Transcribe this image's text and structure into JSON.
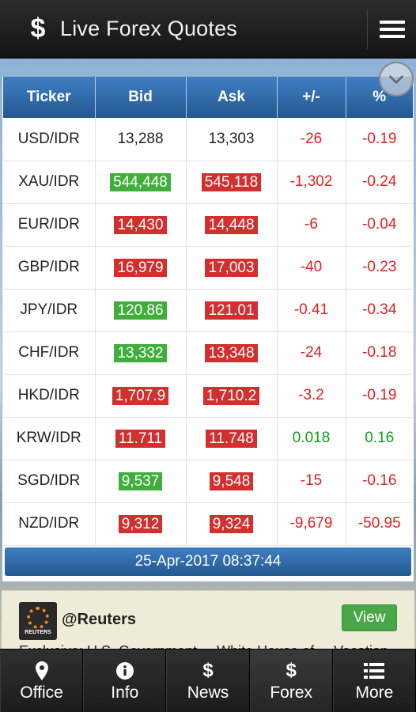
{
  "app": {
    "title": "Live Forex Quotes",
    "logo": "$"
  },
  "quotes": {
    "headers": [
      "Ticker",
      "Bid",
      "Ask",
      "+/-",
      "%"
    ],
    "rows": [
      {
        "ticker": "USD/IDR",
        "bid": "13,288",
        "ask": "13,303",
        "change": "-26",
        "pct": "-0.19",
        "bid_style": "plain",
        "ask_style": "plain",
        "trend": "neg"
      },
      {
        "ticker": "XAU/IDR",
        "bid": "544,448",
        "ask": "545,118",
        "change": "-1,302",
        "pct": "-0.24",
        "bid_style": "up",
        "ask_style": "down",
        "trend": "neg"
      },
      {
        "ticker": "EUR/IDR",
        "bid": "14,430",
        "ask": "14,448",
        "change": "-6",
        "pct": "-0.04",
        "bid_style": "down",
        "ask_style": "down",
        "trend": "neg"
      },
      {
        "ticker": "GBP/IDR",
        "bid": "16,979",
        "ask": "17,003",
        "change": "-40",
        "pct": "-0.23",
        "bid_style": "down",
        "ask_style": "down",
        "trend": "neg"
      },
      {
        "ticker": "JPY/IDR",
        "bid": "120.86",
        "ask": "121.01",
        "change": "-0.41",
        "pct": "-0.34",
        "bid_style": "up",
        "ask_style": "down",
        "trend": "neg"
      },
      {
        "ticker": "CHF/IDR",
        "bid": "13,332",
        "ask": "13,348",
        "change": "-24",
        "pct": "-0.18",
        "bid_style": "up",
        "ask_style": "down",
        "trend": "neg"
      },
      {
        "ticker": "HKD/IDR",
        "bid": "1,707.9",
        "ask": "1,710.2",
        "change": "-3.2",
        "pct": "-0.19",
        "bid_style": "down",
        "ask_style": "down",
        "trend": "neg"
      },
      {
        "ticker": "KRW/IDR",
        "bid": "11.711",
        "ask": "11.748",
        "change": "0.018",
        "pct": "0.16",
        "bid_style": "down",
        "ask_style": "down",
        "trend": "pos"
      },
      {
        "ticker": "SGD/IDR",
        "bid": "9,537",
        "ask": "9,548",
        "change": "-15",
        "pct": "-0.16",
        "bid_style": "up",
        "ask_style": "down",
        "trend": "neg"
      },
      {
        "ticker": "NZD/IDR",
        "bid": "9,312",
        "ask": "9,324",
        "change": "-9,679",
        "pct": "-50.95",
        "bid_style": "down",
        "ask_style": "down",
        "trend": "neg"
      }
    ],
    "timestamp": "25-Apr-2017 08:37:44"
  },
  "news": {
    "handle": "@Reuters",
    "logo_text": "REUTERS",
    "view_label": "View",
    "snippet": "Exclusive: U.S. Government ... White House of ... Vacation"
  },
  "nav": [
    {
      "label": "Office",
      "icon": "location-pin-icon"
    },
    {
      "label": "Info",
      "icon": "info-icon"
    },
    {
      "label": "News",
      "icon": "dollar-icon",
      "glyph": "$"
    },
    {
      "label": "Forex",
      "icon": "dollar-icon",
      "glyph": "$"
    },
    {
      "label": "More",
      "icon": "list-icon"
    }
  ],
  "colors": {
    "header_blue": "#2f6aa8",
    "up_green": "#3fae3b",
    "down_red": "#d32f2f",
    "neg_text": "#e02020",
    "pos_text": "#129b1f"
  }
}
